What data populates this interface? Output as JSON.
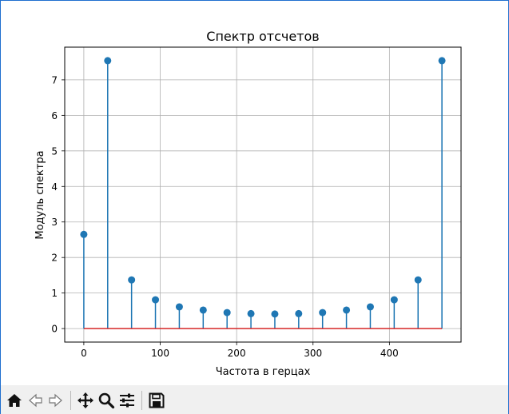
{
  "chart_data": {
    "type": "stem",
    "title": "Спектр отсчетов",
    "xlabel": "Частота в герцах",
    "ylabel": "Модуль спектра",
    "xlim": [
      -25,
      493.75
    ],
    "ylim": [
      -0.38,
      7.92
    ],
    "xticks": [
      0,
      100,
      200,
      300,
      400
    ],
    "yticks": [
      0,
      1,
      2,
      3,
      4,
      5,
      6,
      7
    ],
    "grid": true,
    "x": [
      0,
      31.25,
      62.5,
      93.75,
      125,
      156.25,
      187.5,
      218.75,
      250,
      281.25,
      312.5,
      343.75,
      375,
      406.25,
      437.5,
      468.75
    ],
    "values": [
      2.65,
      7.54,
      1.37,
      0.81,
      0.61,
      0.52,
      0.45,
      0.42,
      0.41,
      0.42,
      0.45,
      0.52,
      0.61,
      0.81,
      1.37,
      7.54
    ],
    "stem_color": "#1f77b4",
    "baseline_color": "#d62728"
  },
  "toolbar": {
    "buttons": [
      {
        "name": "home-icon"
      },
      {
        "name": "back-icon"
      },
      {
        "name": "forward-icon"
      },
      {
        "name": "pan-icon"
      },
      {
        "name": "zoom-icon"
      },
      {
        "name": "configure-subplots-icon"
      },
      {
        "name": "save-icon"
      }
    ]
  }
}
